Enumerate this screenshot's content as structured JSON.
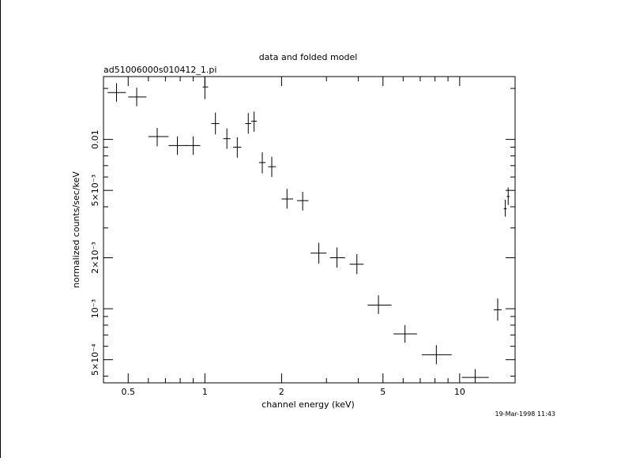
{
  "chart_data": {
    "type": "scatter",
    "title": "data and folded model",
    "subtitle": "ad51006000s010412_1.pi",
    "xlabel": "channel energy (keV)",
    "ylabel": "normalized counts/sec/keV",
    "x_scale": "log",
    "y_scale": "log",
    "xlim": [
      0.4,
      16.5
    ],
    "ylim": [
      0.000365,
      0.0235
    ],
    "x_ticks": [
      {
        "value": 0.5,
        "label": "0.5"
      },
      {
        "value": 1,
        "label": "1"
      },
      {
        "value": 2,
        "label": "2"
      },
      {
        "value": 5,
        "label": "5"
      },
      {
        "value": 10,
        "label": "10"
      }
    ],
    "y_ticks": [
      {
        "value": 0.0005,
        "label": "5×10⁻⁴"
      },
      {
        "value": 0.001,
        "label": "10⁻³"
      },
      {
        "value": 0.002,
        "label": "2×10⁻³"
      },
      {
        "value": 0.005,
        "label": "5×10⁻³"
      },
      {
        "value": 0.01,
        "label": "0.01"
      }
    ],
    "grid": false,
    "legend": "none",
    "series": [
      {
        "points": [
          {
            "x": 0.45,
            "xlo": 0.415,
            "xhi": 0.49,
            "y": 0.0189,
            "ylo": 0.0167,
            "yhi": 0.0215
          },
          {
            "x": 0.54,
            "xlo": 0.5,
            "xhi": 0.59,
            "y": 0.0178,
            "ylo": 0.0157,
            "yhi": 0.0202
          },
          {
            "x": 0.65,
            "xlo": 0.6,
            "xhi": 0.72,
            "y": 0.0104,
            "ylo": 0.0091,
            "yhi": 0.0117
          },
          {
            "x": 0.78,
            "xlo": 0.72,
            "xhi": 0.85,
            "y": 0.0092,
            "ylo": 0.0081,
            "yhi": 0.0104
          },
          {
            "x": 0.9,
            "xlo": 0.84,
            "xhi": 0.96,
            "y": 0.0092,
            "ylo": 0.0081,
            "yhi": 0.0104
          },
          {
            "x": 1.0,
            "xlo": 0.98,
            "xhi": 1.03,
            "y": 0.0204,
            "ylo": 0.0173,
            "yhi": 0.0235
          },
          {
            "x": 1.1,
            "xlo": 1.06,
            "xhi": 1.14,
            "y": 0.0124,
            "ylo": 0.0107,
            "yhi": 0.0144
          },
          {
            "x": 1.22,
            "xlo": 1.18,
            "xhi": 1.26,
            "y": 0.0101,
            "ylo": 0.0088,
            "yhi": 0.0116
          },
          {
            "x": 1.34,
            "xlo": 1.29,
            "xhi": 1.39,
            "y": 0.009,
            "ylo": 0.0078,
            "yhi": 0.0103
          },
          {
            "x": 1.48,
            "xlo": 1.44,
            "xhi": 1.52,
            "y": 0.0124,
            "ylo": 0.0108,
            "yhi": 0.0143
          },
          {
            "x": 1.56,
            "xlo": 1.52,
            "xhi": 1.6,
            "y": 0.0128,
            "ylo": 0.0111,
            "yhi": 0.0146
          },
          {
            "x": 1.68,
            "xlo": 1.63,
            "xhi": 1.73,
            "y": 0.0073,
            "ylo": 0.0063,
            "yhi": 0.0084
          },
          {
            "x": 1.83,
            "xlo": 1.77,
            "xhi": 1.9,
            "y": 0.0069,
            "ylo": 0.006,
            "yhi": 0.0079
          },
          {
            "x": 2.1,
            "xlo": 2.0,
            "xhi": 2.22,
            "y": 0.00445,
            "ylo": 0.0039,
            "yhi": 0.0051
          },
          {
            "x": 2.42,
            "xlo": 2.3,
            "xhi": 2.55,
            "y": 0.00435,
            "ylo": 0.0038,
            "yhi": 0.0049
          },
          {
            "x": 2.8,
            "xlo": 2.6,
            "xhi": 3.0,
            "y": 0.00213,
            "ylo": 0.00185,
            "yhi": 0.00245
          },
          {
            "x": 3.3,
            "xlo": 3.1,
            "xhi": 3.55,
            "y": 0.002,
            "ylo": 0.00175,
            "yhi": 0.0023
          },
          {
            "x": 3.95,
            "xlo": 3.7,
            "xhi": 4.2,
            "y": 0.00183,
            "ylo": 0.0016,
            "yhi": 0.0021
          },
          {
            "x": 4.8,
            "xlo": 4.35,
            "xhi": 5.4,
            "y": 0.00105,
            "ylo": 0.00093,
            "yhi": 0.0012
          },
          {
            "x": 6.1,
            "xlo": 5.5,
            "xhi": 6.8,
            "y": 0.00071,
            "ylo": 0.00063,
            "yhi": 0.0008
          },
          {
            "x": 8.1,
            "xlo": 7.1,
            "xhi": 9.3,
            "y": 0.000535,
            "ylo": 0.00047,
            "yhi": 0.00061
          },
          {
            "x": 11.5,
            "xlo": 10.2,
            "xhi": 13.0,
            "y": 0.000393,
            "ylo": 0.000365,
            "yhi": 0.00044
          },
          {
            "x": 14.1,
            "xlo": 13.6,
            "xhi": 14.6,
            "y": 0.000985,
            "ylo": 0.00085,
            "yhi": 0.00115
          },
          {
            "x": 15.1,
            "xlo": 14.9,
            "xhi": 15.3,
            "y": 0.0039,
            "ylo": 0.0035,
            "yhi": 0.0044
          },
          {
            "x": 15.5,
            "xlo": 15.3,
            "xhi": 15.7,
            "y": 0.0046,
            "ylo": 0.0041,
            "yhi": 0.0052
          }
        ]
      }
    ]
  },
  "footer": {
    "timestamp": "19-Mar-1998 11:43"
  }
}
